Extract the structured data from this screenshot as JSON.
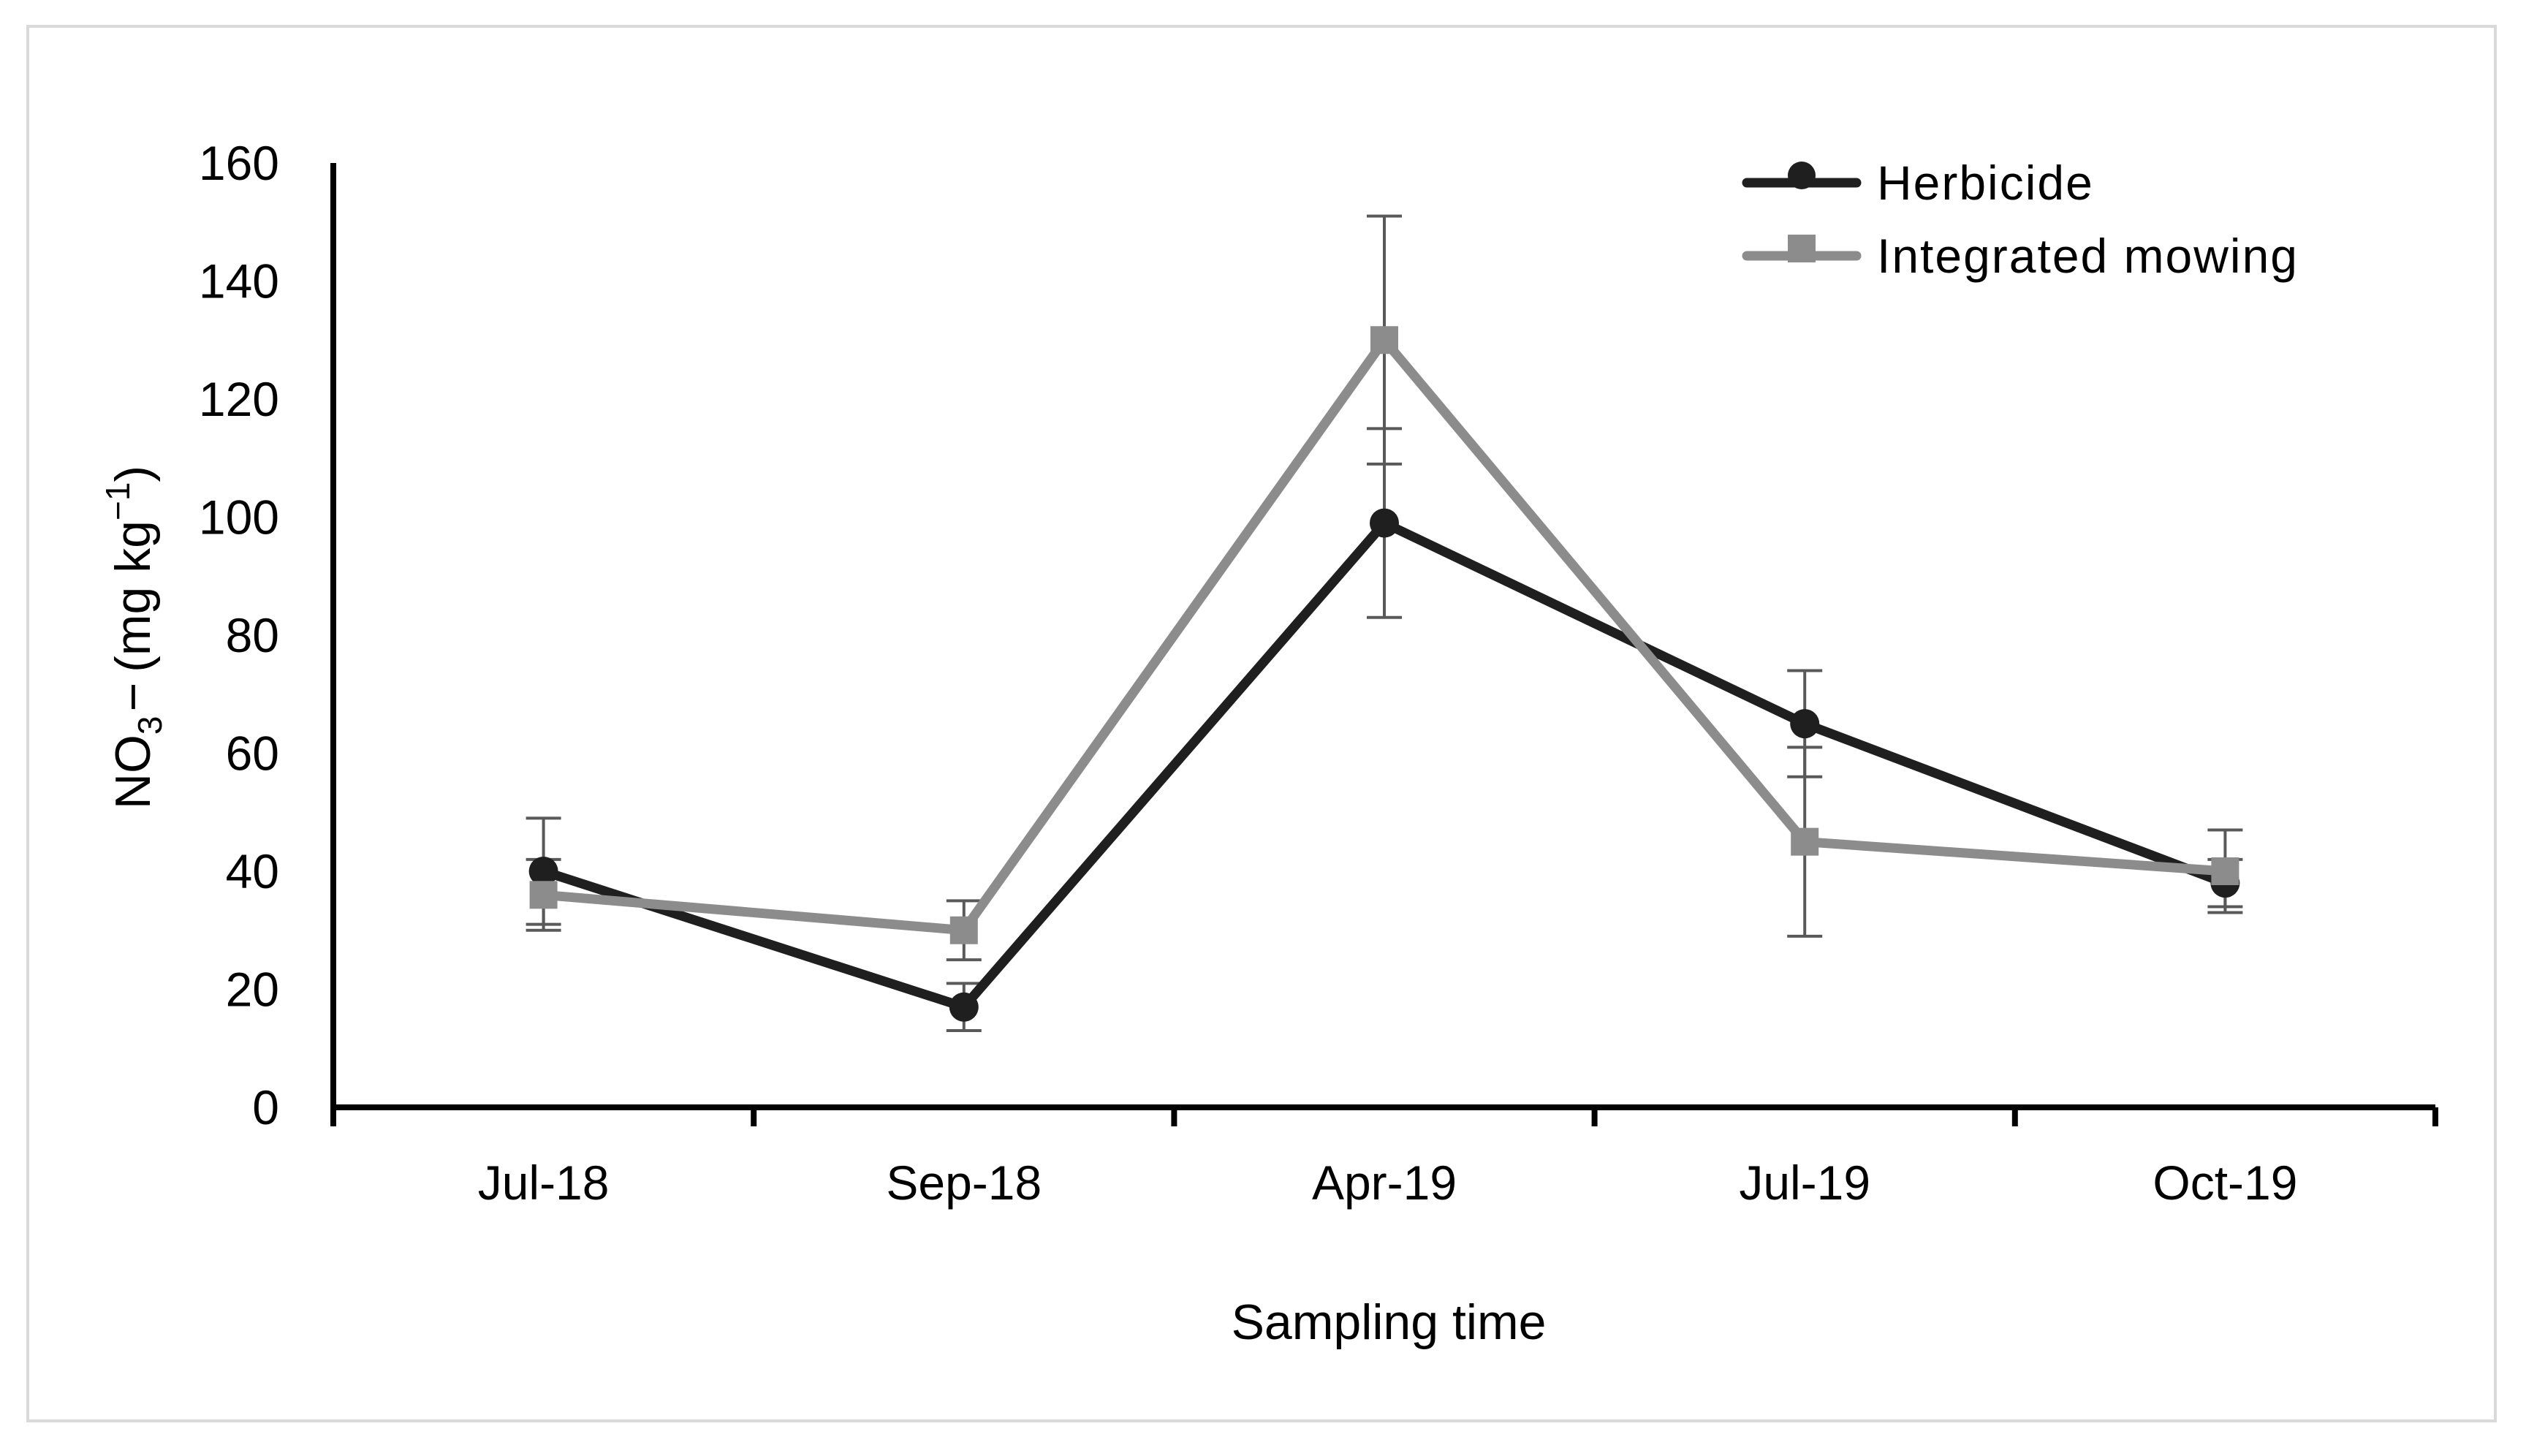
{
  "chart_data": {
    "type": "line",
    "title": "",
    "xlabel": "Sampling time",
    "ylabel": {
      "base": "NO",
      "sub": "3",
      "charge": "−",
      "units_open": "(mg kg",
      "units_sup": "−1",
      "units_close": ")"
    },
    "categories": [
      "Jul-18",
      "Sep-18",
      "Apr-19",
      "Jul-19",
      "Oct-19"
    ],
    "ylim": [
      0,
      160
    ],
    "yticks": [
      0,
      20,
      40,
      60,
      80,
      100,
      120,
      140,
      160
    ],
    "grid": false,
    "legend_position": "top-right",
    "series": [
      {
        "name": "Herbicide",
        "color": "#1f1f1f",
        "marker": "circle",
        "values": [
          40,
          17,
          99,
          65,
          38
        ],
        "errors": [
          9,
          4,
          16,
          9,
          4
        ]
      },
      {
        "name": "Integrated mowing",
        "color": "#8c8c8c",
        "marker": "square",
        "values": [
          36,
          30,
          130,
          45,
          40
        ],
        "errors": [
          6,
          5,
          21,
          16,
          7
        ]
      }
    ]
  }
}
